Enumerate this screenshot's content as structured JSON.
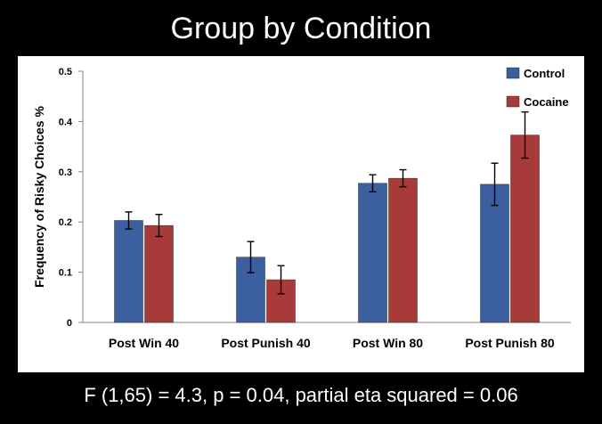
{
  "slide": {
    "title": "Group by Condition",
    "footer": "F (1,65) = 4.3, p = 0.04, partial eta squared = 0.06"
  },
  "chart_data": {
    "type": "bar",
    "title": "",
    "xlabel": "",
    "ylabel": "Frequency of Risky Choices %",
    "ylim": [
      0,
      0.5
    ],
    "yticks": [
      "0",
      "0.1",
      "0.2",
      "0.3",
      "0.4",
      "0.5"
    ],
    "grid": false,
    "legend_position": "top-right",
    "categories": [
      "Post Win 40",
      "Post Punish 40",
      "Post Win 80",
      "Post Punish 80"
    ],
    "series": [
      {
        "name": "Control",
        "color": "#3c5fa0",
        "values": [
          0.203,
          0.13,
          0.277,
          0.275
        ],
        "errors": [
          0.017,
          0.031,
          0.017,
          0.042
        ]
      },
      {
        "name": "Cocaine",
        "color": "#a83a3a",
        "values": [
          0.193,
          0.085,
          0.287,
          0.373
        ],
        "errors": [
          0.022,
          0.028,
          0.017,
          0.046
        ]
      }
    ]
  }
}
